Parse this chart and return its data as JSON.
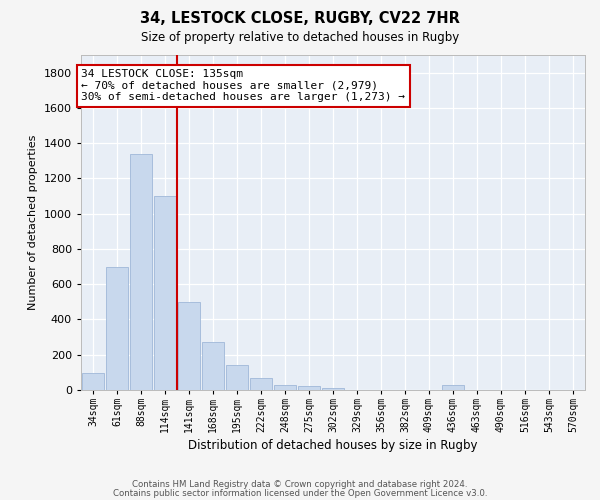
{
  "title1": "34, LESTOCK CLOSE, RUGBY, CV22 7HR",
  "title2": "Size of property relative to detached houses in Rugby",
  "xlabel": "Distribution of detached houses by size in Rugby",
  "ylabel": "Number of detached properties",
  "bar_color": "#c8d8ed",
  "bar_edge_color": "#a0b8d8",
  "background_color": "#e8eef6",
  "grid_color": "#ffffff",
  "vline_color": "#cc0000",
  "ann_box_edgecolor": "#cc0000",
  "ann_lines": [
    "34 LESTOCK CLOSE: 135sqm",
    "← 70% of detached houses are smaller (2,979)",
    "30% of semi-detached houses are larger (1,273) →"
  ],
  "footer1": "Contains HM Land Registry data © Crown copyright and database right 2024.",
  "footer2": "Contains public sector information licensed under the Open Government Licence v3.0.",
  "categories": [
    "34sqm",
    "61sqm",
    "88sqm",
    "114sqm",
    "141sqm",
    "168sqm",
    "195sqm",
    "222sqm",
    "248sqm",
    "275sqm",
    "302sqm",
    "329sqm",
    "356sqm",
    "382sqm",
    "409sqm",
    "436sqm",
    "463sqm",
    "490sqm",
    "516sqm",
    "543sqm",
    "570sqm"
  ],
  "values": [
    95,
    700,
    1340,
    1100,
    500,
    275,
    140,
    70,
    30,
    25,
    10,
    0,
    0,
    0,
    0,
    30,
    0,
    0,
    0,
    0,
    0
  ],
  "vline_x": 3.5,
  "ylim": [
    0,
    1900
  ],
  "yticks": [
    0,
    200,
    400,
    600,
    800,
    1000,
    1200,
    1400,
    1600,
    1800
  ],
  "fig_bg": "#f5f5f5"
}
